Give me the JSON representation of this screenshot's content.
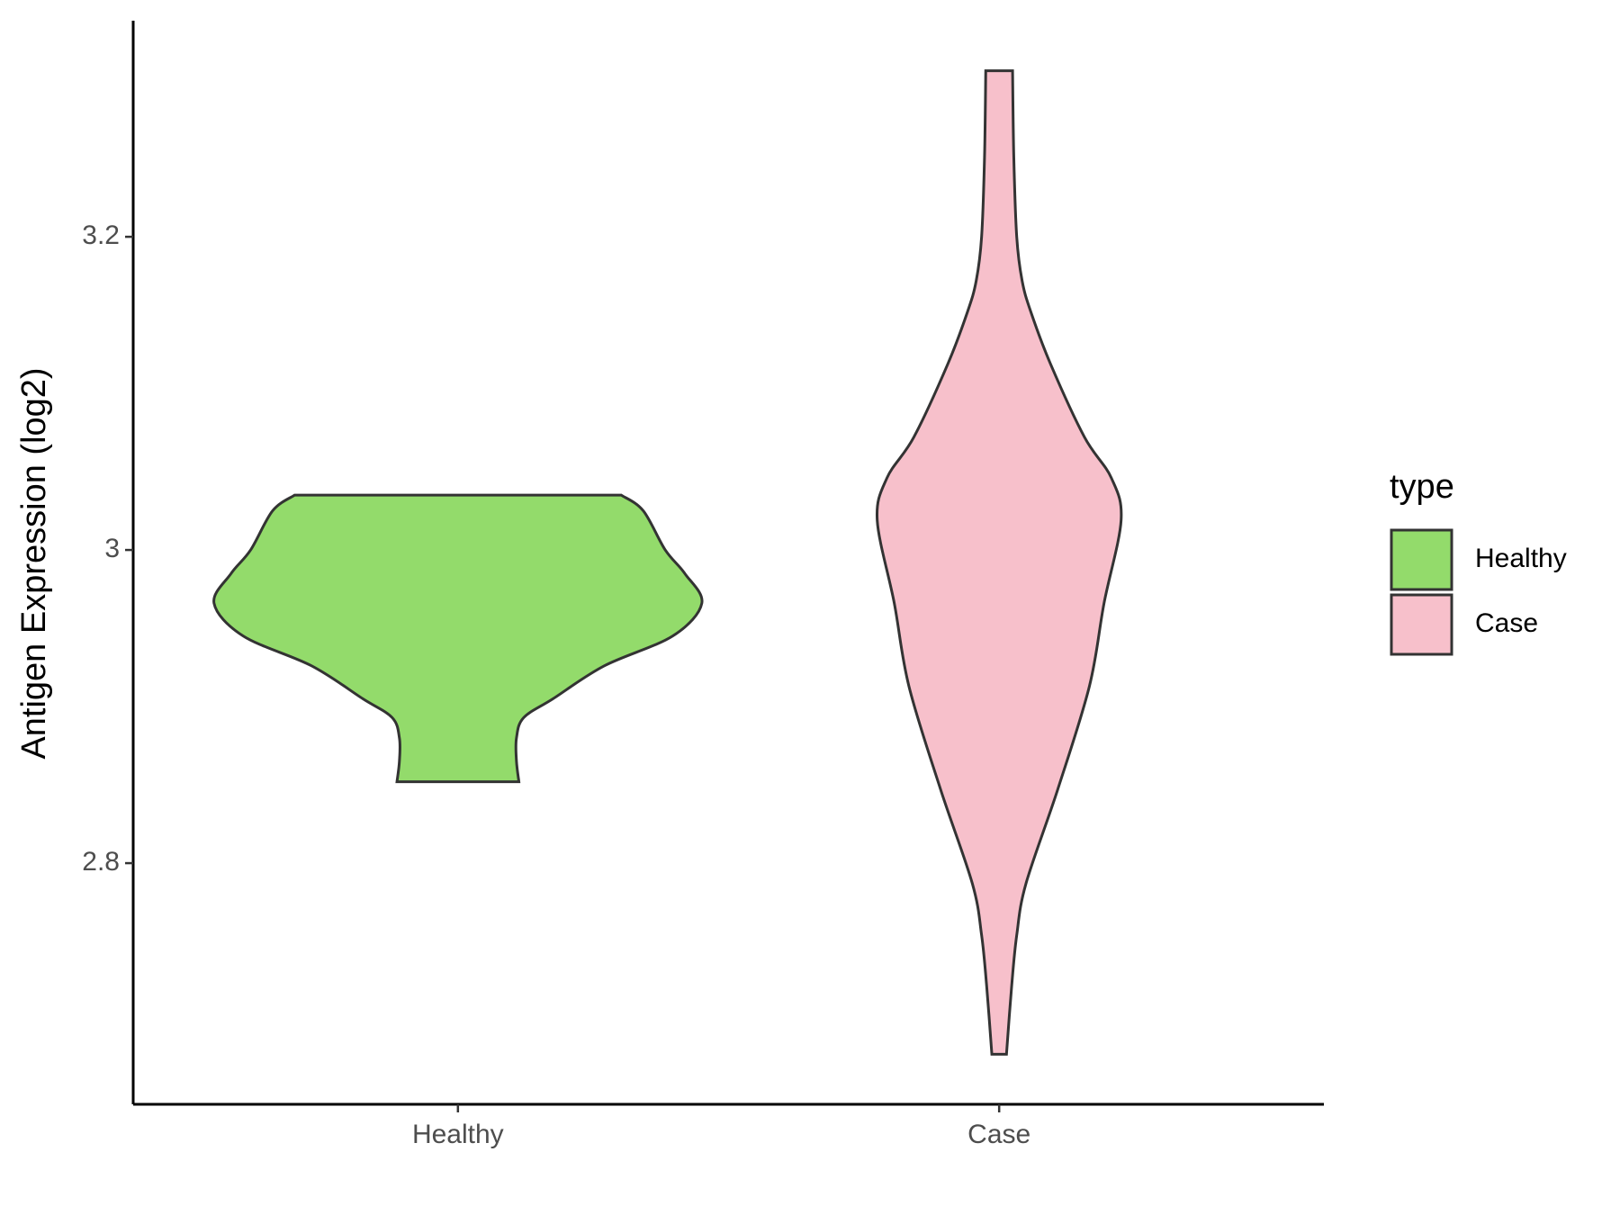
{
  "chart_data": {
    "type": "violin",
    "y_label": "Antigen Expression (log2)",
    "categories": [
      "Healthy",
      "Case"
    ],
    "legend_title": "type",
    "ylim": [
      2.646,
      3.338
    ],
    "yticks": [
      2.8,
      3.0,
      3.2
    ],
    "series": [
      {
        "name": "Healthy",
        "color": "#93db6b",
        "y": [
          3.035,
          3.025,
          3.0,
          2.985,
          2.966,
          2.945,
          2.926,
          2.905,
          2.893,
          2.88,
          2.865,
          2.852
        ],
        "widths": [
          0.67,
          0.76,
          0.85,
          0.93,
          1.0,
          0.88,
          0.6,
          0.39,
          0.27,
          0.24,
          0.24,
          0.25
        ]
      },
      {
        "name": "Case",
        "color": "#f7c0cb",
        "y": [
          3.306,
          3.251,
          3.2,
          3.172,
          3.152,
          3.119,
          3.072,
          3.046,
          3.019,
          2.966,
          2.913,
          2.847,
          2.787,
          2.754,
          2.721,
          2.678
        ],
        "widths": [
          0.055,
          0.06,
          0.072,
          0.094,
          0.13,
          0.21,
          0.35,
          0.46,
          0.5,
          0.43,
          0.37,
          0.24,
          0.11,
          0.072,
          0.051,
          0.03
        ]
      }
    ]
  }
}
